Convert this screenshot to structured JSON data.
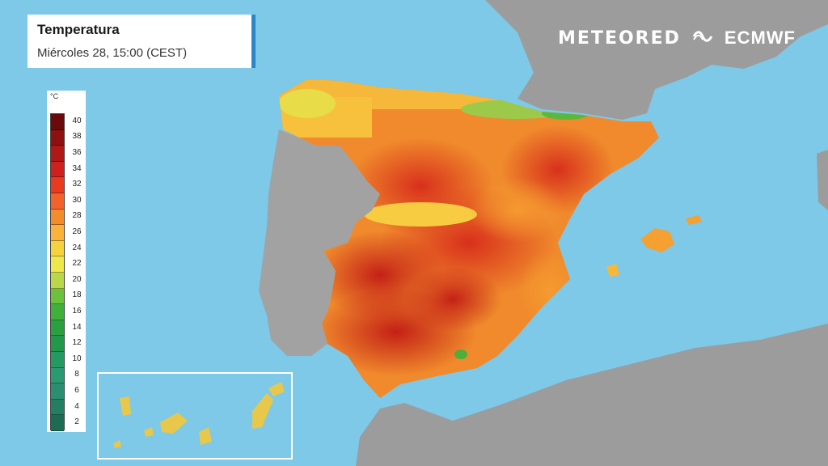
{
  "title": "Temperatura",
  "subtitle": "Miércoles 28, 15:00 (CEST)",
  "logos": {
    "meteored": "METEORED",
    "ecmwf": "ECMWF"
  },
  "legend": {
    "unit": "°C",
    "ticks": [
      "40",
      "38",
      "36",
      "34",
      "32",
      "30",
      "28",
      "26",
      "24",
      "22",
      "20",
      "18",
      "16",
      "14",
      "12",
      "10",
      "8",
      "6",
      "4",
      "2"
    ],
    "colors": [
      "#6b0a0a",
      "#8e1010",
      "#b01818",
      "#cf2020",
      "#e83a1e",
      "#f2622a",
      "#f58c2c",
      "#f9b23a",
      "#f7d23f",
      "#eee84a",
      "#b8d84a",
      "#6cc23c",
      "#3fb03a",
      "#2aa040",
      "#22994a",
      "#259a60",
      "#2a9a72",
      "#2a8e70",
      "#237e62",
      "#1c6c54"
    ]
  },
  "colors": {
    "sea": "#7ec8e8",
    "land": "#9a9a9a",
    "accent": "#2a86c8"
  }
}
